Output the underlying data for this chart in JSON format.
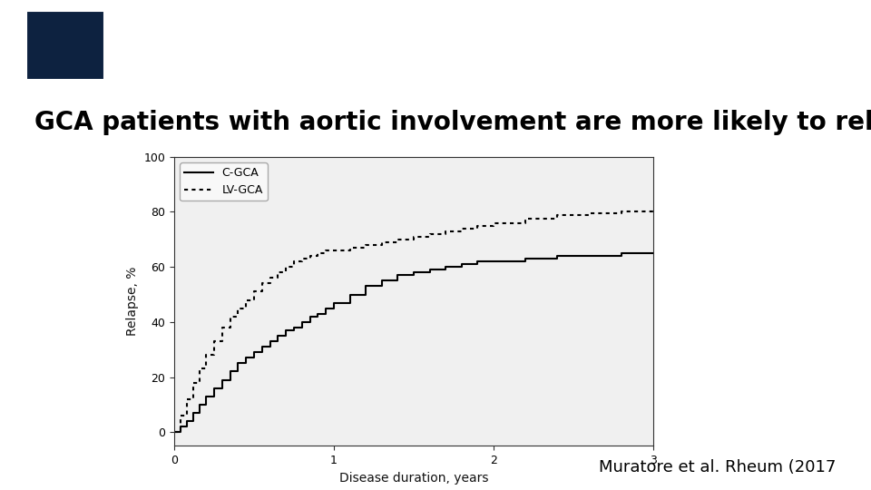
{
  "header_color": "#0d2240",
  "background_color": "#ffffff",
  "title": "GCA patients with aortic involvement are more likely to relapse",
  "title_fontsize": 20,
  "title_color": "#000000",
  "xlabel": "Disease duration, years",
  "ylabel": "Relapse, %",
  "xlim": [
    0,
    3
  ],
  "ylim": [
    -5,
    100
  ],
  "xticks": [
    0,
    1,
    2,
    3
  ],
  "yticks": [
    0,
    20,
    40,
    60,
    80,
    100
  ],
  "citation": "Muratore et al. Rheum (2017",
  "citation_fontsize": 13,
  "legend_labels": [
    "C-GCA",
    "LV-GCA"
  ],
  "plot_bg": "#e8e8e8",
  "cgca_x": [
    0.0,
    0.04,
    0.08,
    0.12,
    0.16,
    0.2,
    0.25,
    0.3,
    0.35,
    0.4,
    0.45,
    0.5,
    0.55,
    0.6,
    0.65,
    0.7,
    0.75,
    0.8,
    0.85,
    0.9,
    0.95,
    1.0,
    1.1,
    1.2,
    1.3,
    1.4,
    1.5,
    1.6,
    1.7,
    1.8,
    1.9,
    2.0,
    2.2,
    2.4,
    2.6,
    2.8,
    3.0
  ],
  "cgca_y": [
    0,
    2,
    4,
    7,
    10,
    13,
    16,
    19,
    22,
    25,
    27,
    29,
    31,
    33,
    35,
    37,
    38,
    40,
    42,
    43,
    45,
    47,
    50,
    53,
    55,
    57,
    58,
    59,
    60,
    61,
    62,
    62,
    63,
    64,
    64,
    65,
    65
  ],
  "lvgca_x": [
    0.0,
    0.04,
    0.08,
    0.12,
    0.16,
    0.2,
    0.25,
    0.3,
    0.35,
    0.4,
    0.45,
    0.5,
    0.55,
    0.6,
    0.65,
    0.7,
    0.75,
    0.8,
    0.85,
    0.9,
    0.95,
    1.0,
    1.1,
    1.2,
    1.3,
    1.4,
    1.5,
    1.6,
    1.7,
    1.8,
    1.9,
    2.0,
    2.2,
    2.4,
    2.6,
    2.8,
    3.0
  ],
  "lvgca_y": [
    0,
    6,
    12,
    18,
    23,
    28,
    33,
    38,
    42,
    45,
    48,
    51,
    54,
    56,
    58,
    60,
    62,
    63,
    64,
    65,
    66,
    66,
    67,
    68,
    69,
    70,
    71,
    72,
    73,
    74,
    75,
    76,
    77.5,
    79,
    79.5,
    80,
    80
  ]
}
